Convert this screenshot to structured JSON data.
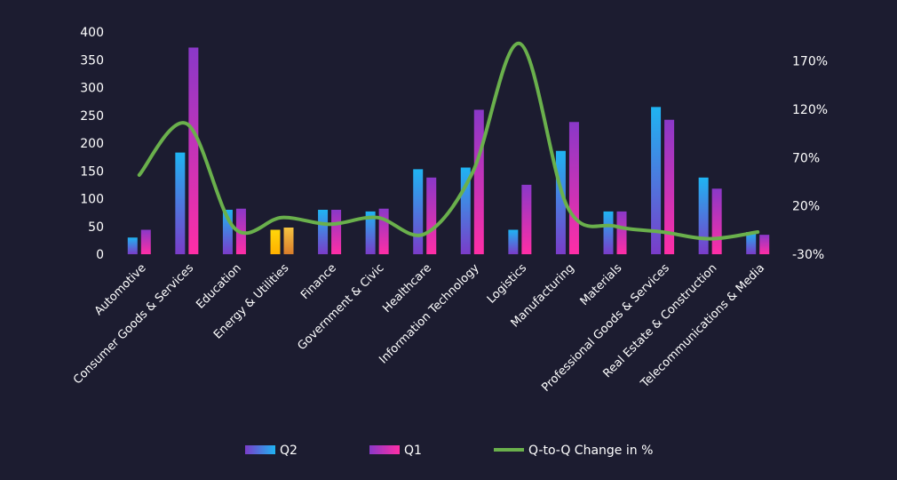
{
  "chart_data": {
    "type": "bar",
    "categories": [
      "Automotive",
      "Consumer Goods & Services",
      "Education",
      "Energy & Utilities",
      "Finance",
      "Government & Civic",
      "Healthcare",
      "Information Technology",
      "Logistics",
      "Manufacturing",
      "Materials",
      "Professional Goods & Services",
      "Real Estate & Construction",
      "Telecommunications & Media"
    ],
    "series": [
      {
        "name": "Q2",
        "type": "bar",
        "axis": "left",
        "values": [
          30,
          183,
          80,
          44,
          80,
          77,
          153,
          156,
          44,
          186,
          77,
          265,
          138,
          40
        ]
      },
      {
        "name": "Q1",
        "type": "bar",
        "axis": "left",
        "values": [
          44,
          372,
          82,
          48,
          80,
          82,
          138,
          260,
          125,
          238,
          77,
          242,
          118,
          35
        ]
      },
      {
        "name": "Q-to-Q Change in %",
        "type": "line",
        "axis": "right",
        "values": [
          52,
          105,
          -3,
          8,
          1,
          8,
          -9,
          54,
          188,
          19,
          -1,
          -7,
          -14,
          -7
        ]
      }
    ],
    "left_axis": {
      "ylim": [
        0,
        400
      ],
      "ticks": [
        "0",
        "50",
        "100",
        "150",
        "200",
        "250",
        "300",
        "350",
        "400"
      ]
    },
    "right_axis": {
      "ylim": [
        -30,
        200
      ],
      "tick_values": [
        -30,
        20,
        70,
        120,
        170
      ],
      "ticks": [
        "-30%",
        "20%",
        "70%",
        "120%",
        "170%"
      ]
    },
    "title": "",
    "xlabel": "",
    "ylabel": "",
    "grid": false,
    "legend": {
      "placement": "bottom",
      "entries": [
        "Q2",
        "Q1",
        "Q-to-Q Change in %"
      ]
    },
    "colors": {
      "background": "#1c1c30",
      "q2_top": "#1fb4f2",
      "q2_bottom": "#7a3cc9",
      "q1_top": "#8a38c8",
      "q1_bottom": "#ff2ea6",
      "line": "#6ab04c",
      "highlight_q2_top": "#ffd60a",
      "highlight_q2_bottom": "#ffb000",
      "highlight_q1_top": "#f5c341",
      "highlight_q1_bottom": "#d97d2b"
    },
    "highlight_category": "Energy & Utilities"
  }
}
